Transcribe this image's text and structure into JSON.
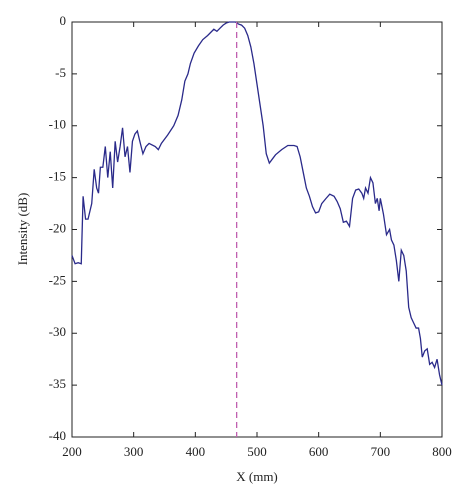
{
  "chart_data": {
    "type": "line",
    "xlabel": "X (mm)",
    "ylabel": "Intensity (dB)",
    "x": [
      200,
      205,
      210,
      215,
      218,
      222,
      226,
      232,
      236,
      240,
      243,
      246,
      250,
      254,
      258,
      262,
      266,
      270,
      274,
      278,
      282,
      286,
      290,
      294,
      298,
      302,
      306,
      310,
      315,
      320,
      325,
      335,
      340,
      345,
      355,
      365,
      372,
      378,
      383,
      388,
      392,
      398,
      405,
      412,
      420,
      425,
      430,
      435,
      440,
      445,
      450,
      455,
      460,
      465,
      470,
      475,
      480,
      485,
      490,
      495,
      500,
      505,
      510,
      515,
      520,
      525,
      530,
      540,
      550,
      560,
      565,
      570,
      575,
      580,
      585,
      590,
      595,
      600,
      605,
      612,
      618,
      625,
      630,
      635,
      640,
      645,
      650,
      655,
      660,
      665,
      670,
      673,
      676,
      680,
      684,
      688,
      692,
      695,
      698,
      700,
      705,
      710,
      715,
      718,
      722,
      726,
      730,
      734,
      738,
      742,
      746,
      750,
      754,
      758,
      762,
      765,
      768,
      772,
      776,
      780,
      784,
      788,
      792,
      796,
      800
    ],
    "series": [
      {
        "name": "Intensity",
        "color": "#2a2a8a",
        "values": [
          -22.5,
          -23.3,
          -23.2,
          -23.3,
          -16.8,
          -19,
          -19,
          -17.5,
          -14.2,
          -16,
          -16.5,
          -14,
          -14,
          -12,
          -15,
          -12.5,
          -16,
          -11.5,
          -13.5,
          -12,
          -10.2,
          -13,
          -12,
          -14.5,
          -11.5,
          -10.8,
          -10.5,
          -11.5,
          -12.7,
          -12,
          -11.7,
          -12,
          -12.3,
          -11.7,
          -10.9,
          -10,
          -9,
          -7.5,
          -5.7,
          -5,
          -4,
          -3,
          -2.3,
          -1.7,
          -1.3,
          -1,
          -0.7,
          -0.9,
          -0.6,
          -0.3,
          -0.1,
          0,
          0,
          0,
          -0.2,
          -0.3,
          -0.6,
          -1.3,
          -2.4,
          -4,
          -6,
          -8,
          -10,
          -12.7,
          -13.6,
          -13.2,
          -12.8,
          -12.3,
          -11.9,
          -11.9,
          -12,
          -13,
          -14.5,
          -16,
          -16.8,
          -17.8,
          -18.4,
          -18.3,
          -17.5,
          -17,
          -16.6,
          -16.8,
          -17.3,
          -18,
          -19.3,
          -19.2,
          -19.7,
          -17,
          -16.2,
          -16.1,
          -16.5,
          -17,
          -16,
          -16.5,
          -15,
          -15.5,
          -17.5,
          -17,
          -18.2,
          -17,
          -18.5,
          -20.5,
          -20,
          -21,
          -21.5,
          -23,
          -25,
          -22,
          -22.5,
          -24,
          -27.5,
          -28.5,
          -29,
          -29.5,
          -29.5,
          -30.5,
          -32.3,
          -31.7,
          -31.5,
          -33,
          -32.8,
          -33.3,
          -32.5,
          -34,
          -35
        ]
      }
    ],
    "reference_x": 467,
    "reference_color": "#c060b0",
    "xlim": [
      200,
      800
    ],
    "xticks": [
      200,
      300,
      400,
      500,
      600,
      700,
      800
    ],
    "ylim": [
      -40,
      0
    ],
    "yticks": [
      0,
      -5,
      -10,
      -15,
      -20,
      -25,
      -30,
      -35,
      -40
    ],
    "grid": false
  }
}
